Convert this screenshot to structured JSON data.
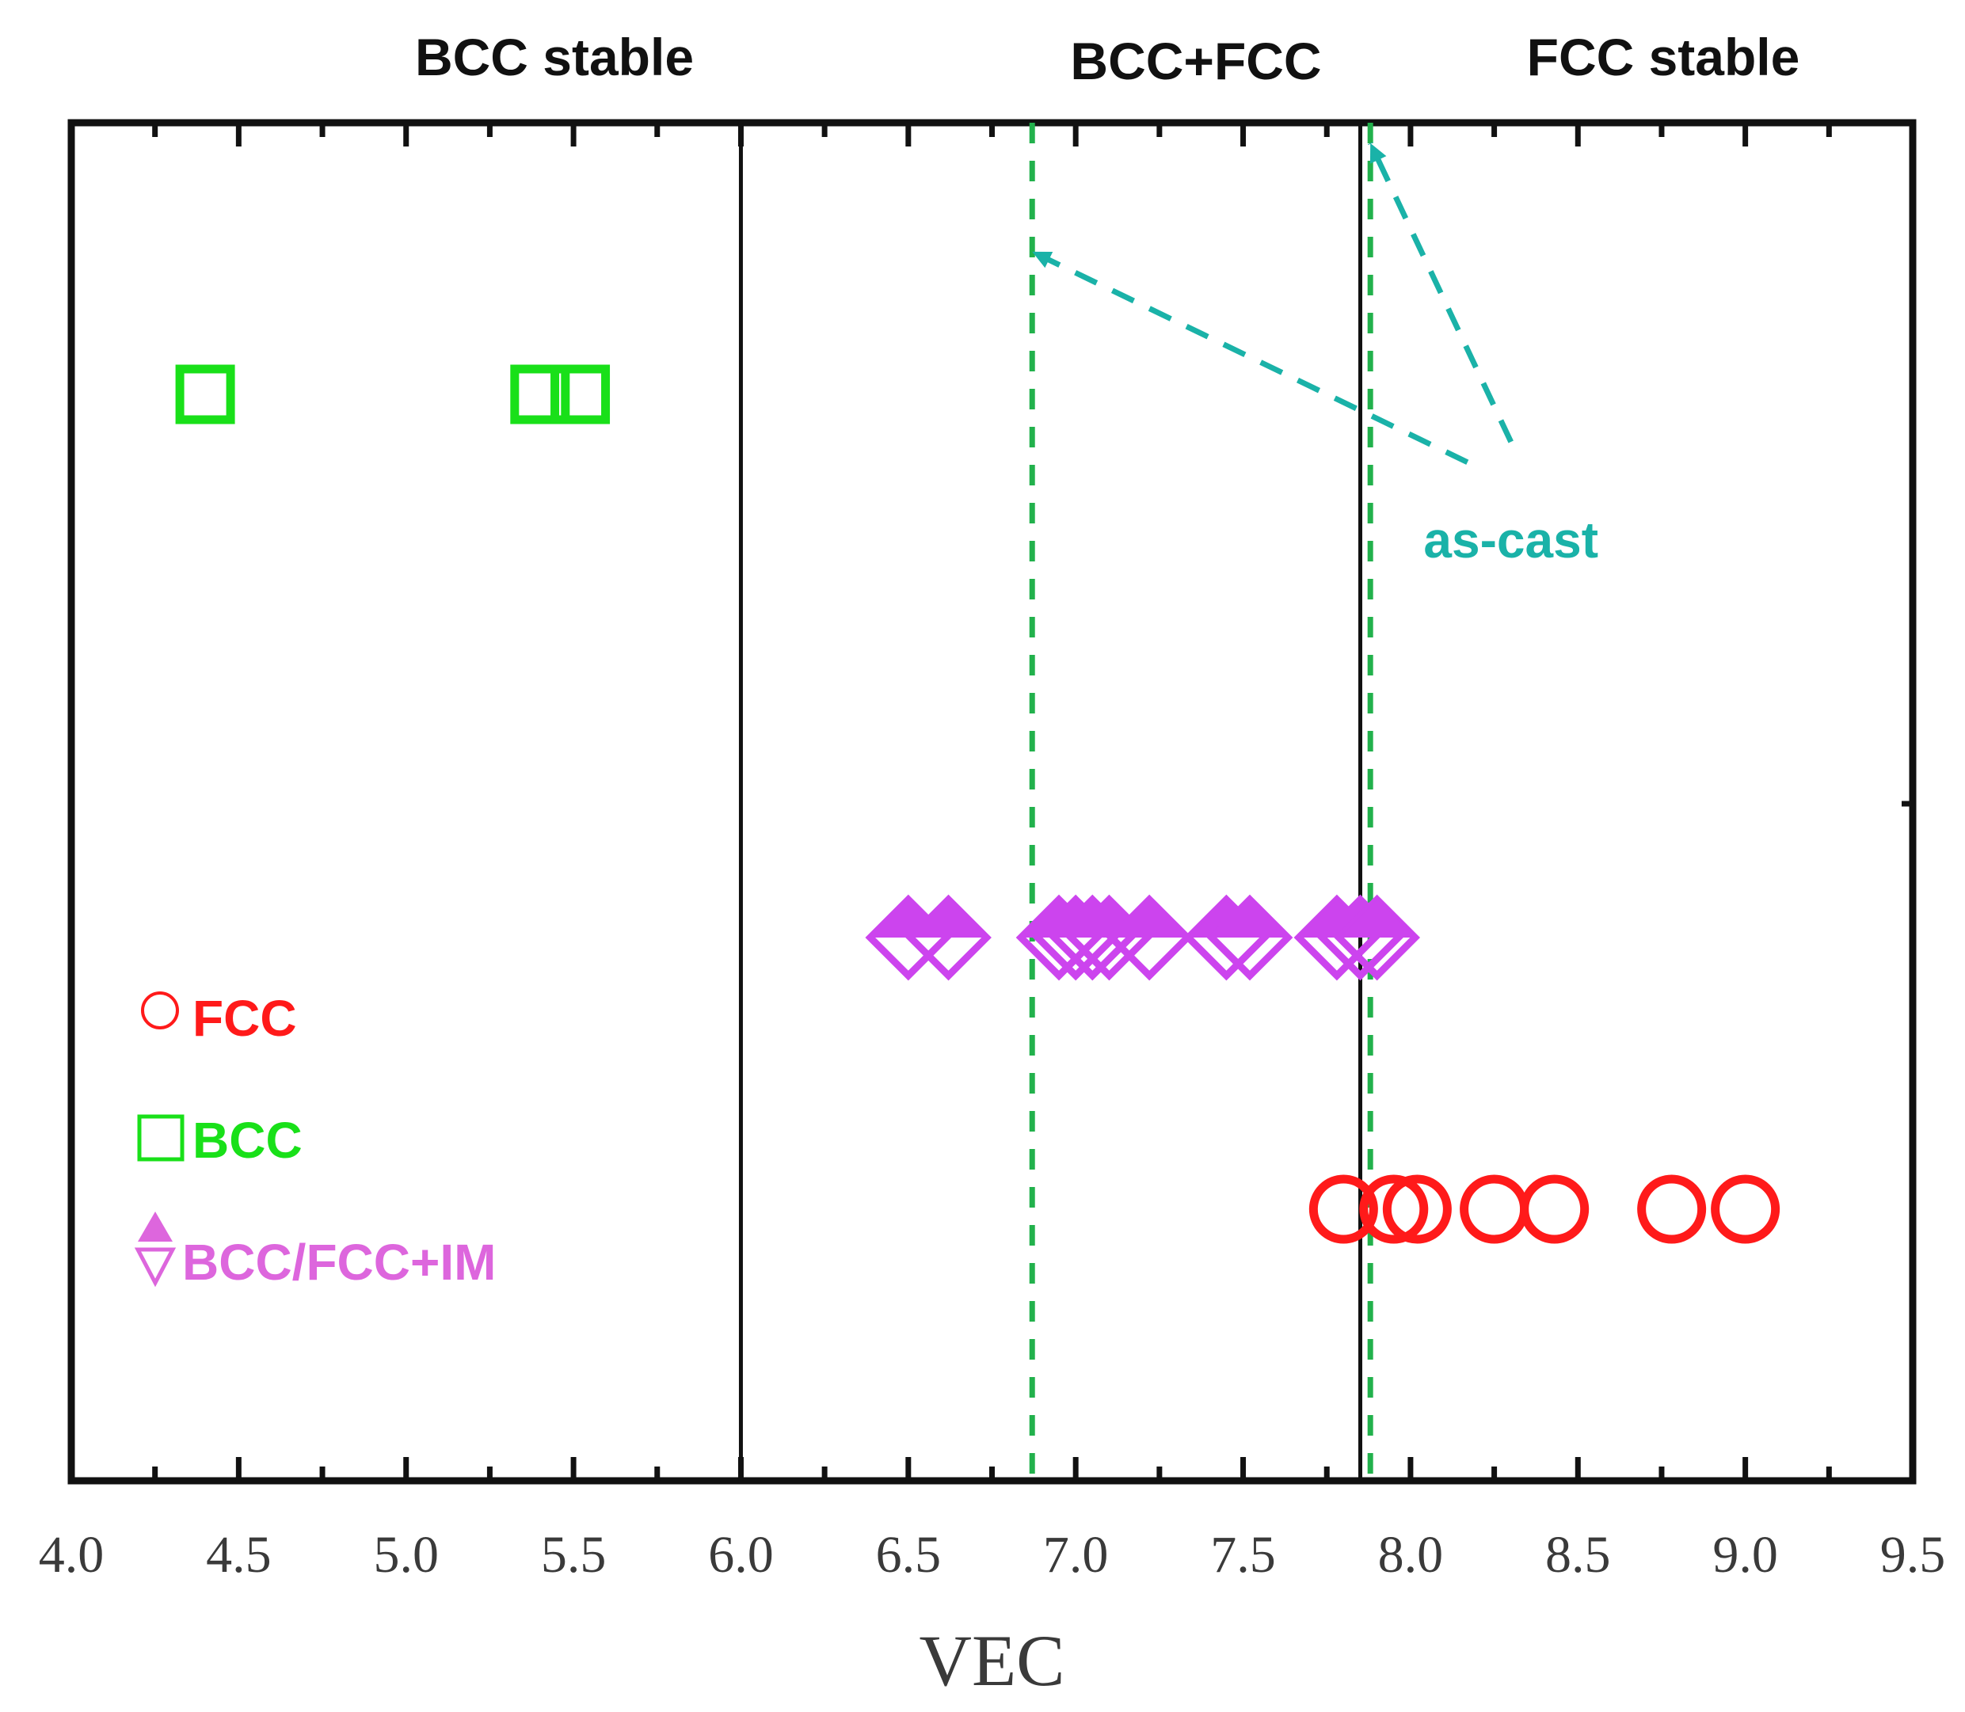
{
  "chart_data": {
    "type": "scatter",
    "title": "",
    "xlabel": "VEC",
    "ylabel": "",
    "xlim": [
      4.0,
      9.5
    ],
    "ylim": [
      0,
      1
    ],
    "grid": false,
    "x_ticks": [
      "4.0",
      "4.5",
      "5.0",
      "5.5",
      "6.0",
      "6.5",
      "7.0",
      "7.5",
      "8.0",
      "8.5",
      "9.0",
      "9.5"
    ],
    "regions": [
      {
        "label": "BCC stable",
        "from": 4.0,
        "to": 6.0
      },
      {
        "label": "BCC+FCC",
        "from": 6.0,
        "to": 7.85
      },
      {
        "label": "FCC stable",
        "from": 7.85,
        "to": 9.5
      }
    ],
    "boundaries": [
      {
        "x": 6.0,
        "style": "solid",
        "color": "#111111"
      },
      {
        "x": 7.85,
        "style": "solid",
        "color": "#111111"
      },
      {
        "x": 6.87,
        "style": "dashed",
        "color": "#22b14c"
      },
      {
        "x": 7.88,
        "style": "dashed",
        "color": "#22b14c"
      }
    ],
    "series": [
      {
        "name": "FCC",
        "marker": "circle",
        "color": "#ff1a1a",
        "y": 0.2,
        "x": [
          7.8,
          7.95,
          8.02,
          8.25,
          8.43,
          8.78,
          9.0
        ]
      },
      {
        "name": "BCC",
        "marker": "square",
        "color": "#19e019",
        "y": 0.8,
        "x": [
          4.4,
          5.4,
          5.52
        ]
      },
      {
        "name": "BCC/FCC+IM",
        "marker": "diamond",
        "color": "#cc44ee",
        "y": 0.4,
        "x": [
          6.5,
          6.62,
          6.95,
          7.0,
          7.05,
          7.1,
          7.22,
          7.45,
          7.52,
          7.78,
          7.85,
          7.9
        ]
      }
    ],
    "annotations": [
      {
        "text": "as-cast",
        "color": "#1ab2a8",
        "x": 8.3,
        "y": 0.68
      }
    ],
    "legend_position": "bottom-left"
  }
}
